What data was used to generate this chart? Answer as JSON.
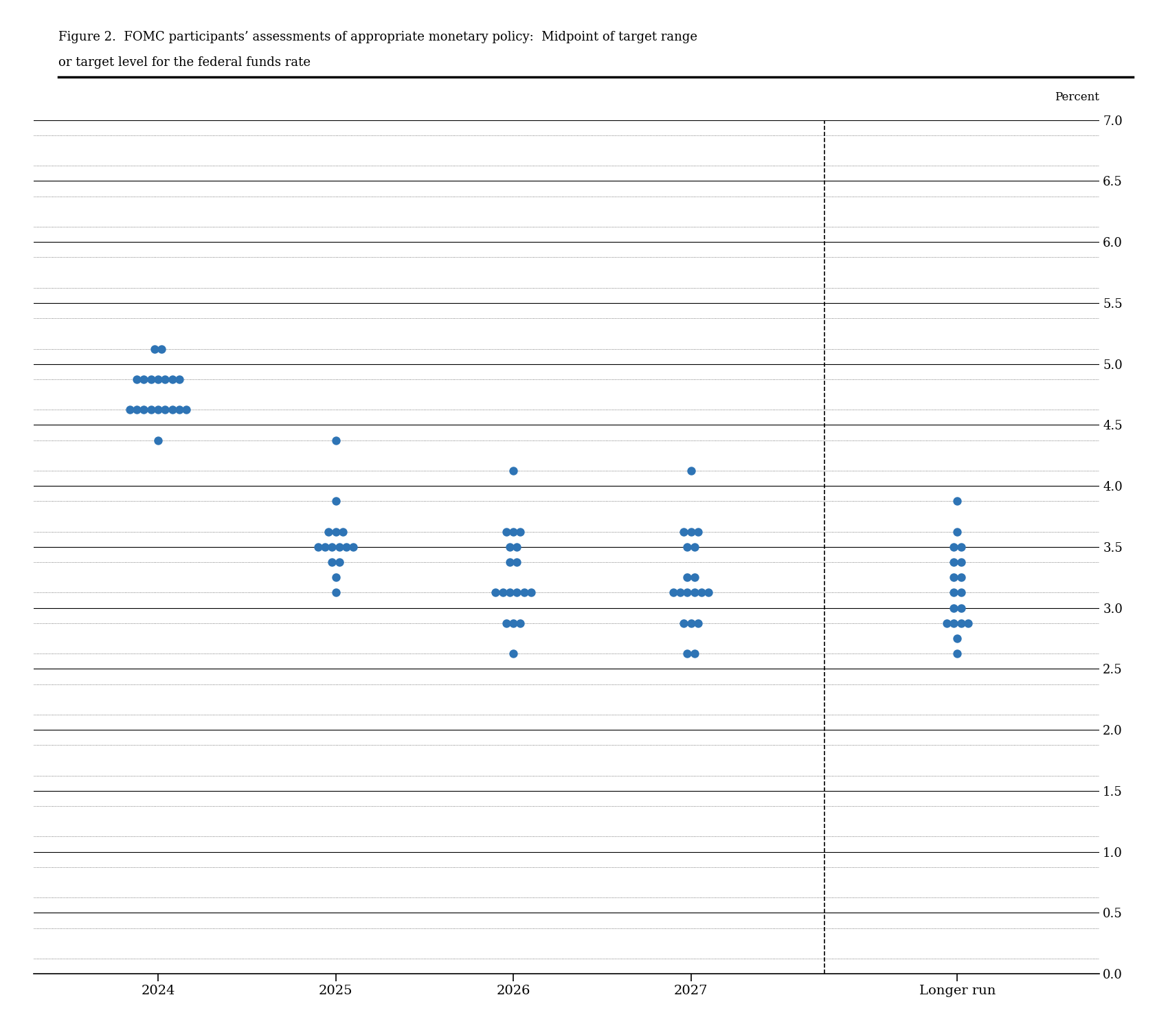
{
  "title_line1": "Figure 2.  FOMC participants’ assessments of appropriate monetary policy:  Midpoint of target range",
  "title_line2": "or target level for the federal funds rate",
  "ylabel": "Percent",
  "x_categories": [
    "2024",
    "2025",
    "2026",
    "2027",
    "Longer run"
  ],
  "x_positions": [
    1,
    2,
    3,
    4,
    5.5
  ],
  "dashed_line_x": 4.75,
  "ylim": [
    0.0,
    7.0
  ],
  "yticks": [
    0.0,
    0.5,
    1.0,
    1.5,
    2.0,
    2.5,
    3.0,
    3.5,
    4.0,
    4.5,
    5.0,
    5.5,
    6.0,
    6.5,
    7.0
  ],
  "dot_color": "#2E74B5",
  "dot_size": 80,
  "dot_jitter": 0.04,
  "dots": {
    "2024": [
      5.125,
      5.125,
      4.875,
      4.875,
      4.875,
      4.875,
      4.875,
      4.875,
      4.875,
      4.625,
      4.625,
      4.625,
      4.625,
      4.625,
      4.625,
      4.625,
      4.625,
      4.625,
      4.375
    ],
    "2025": [
      4.375,
      3.875,
      3.625,
      3.625,
      3.625,
      3.5,
      3.5,
      3.5,
      3.5,
      3.5,
      3.5,
      3.375,
      3.375,
      3.25,
      3.125
    ],
    "2026": [
      4.125,
      3.625,
      3.625,
      3.625,
      3.5,
      3.5,
      3.375,
      3.375,
      3.125,
      3.125,
      3.125,
      3.125,
      3.125,
      3.125,
      2.875,
      2.875,
      2.875,
      2.625
    ],
    "2027": [
      4.125,
      3.625,
      3.625,
      3.625,
      3.5,
      3.5,
      3.25,
      3.25,
      3.125,
      3.125,
      3.125,
      3.125,
      3.125,
      3.125,
      2.875,
      2.875,
      2.875,
      2.625,
      2.625
    ],
    "Longer run": [
      3.875,
      3.625,
      3.5,
      3.5,
      3.375,
      3.375,
      3.25,
      3.25,
      3.125,
      3.125,
      3.0,
      3.0,
      2.875,
      2.875,
      2.875,
      2.875,
      2.75,
      2.625
    ]
  },
  "background_color": "#ffffff",
  "grid_color": "#000000",
  "solid_line_color": "#000000",
  "dotted_line_color": "#888888"
}
